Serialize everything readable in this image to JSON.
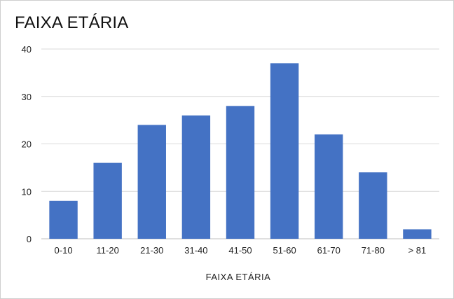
{
  "chart_data": {
    "type": "bar",
    "title": "FAIXA ETÁRIA",
    "xlabel": "FAIXA ETÁRIA",
    "ylabel": "",
    "categories": [
      "0-10",
      "11-20",
      "21-30",
      "31-40",
      "41-50",
      "51-60",
      "61-70",
      "71-80",
      "> 81"
    ],
    "values": [
      8,
      16,
      24,
      26,
      28,
      37,
      22,
      14,
      2
    ],
    "ylim": [
      0,
      40
    ],
    "yticks": [
      0,
      10,
      20,
      30,
      40
    ],
    "grid": true,
    "legend": "none",
    "bar_color": "#4472c4",
    "grid_color": "#d9d9d9"
  }
}
